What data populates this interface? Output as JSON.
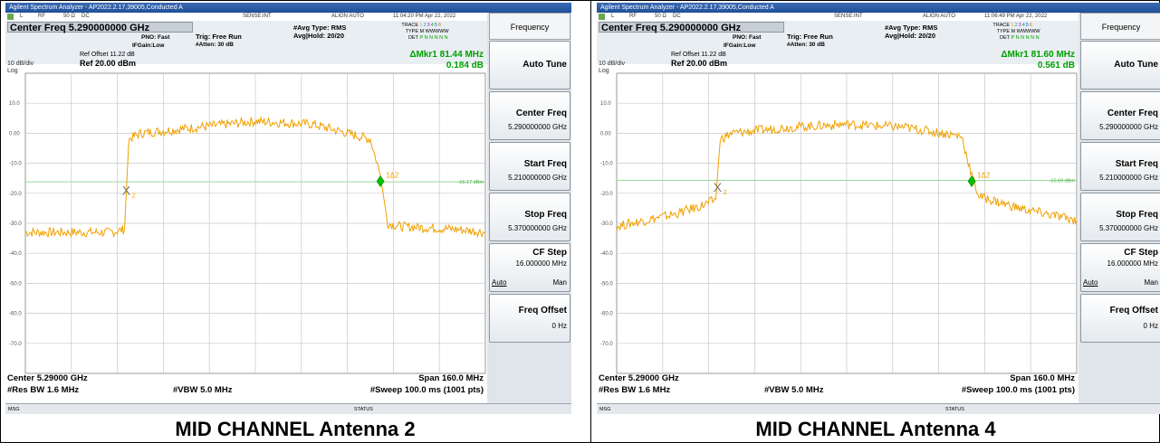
{
  "colors": {
    "trace": "#f0a000",
    "marker": "#00c000",
    "threshold": "#9bd89b",
    "grid": "#c8c8c8",
    "delta_text": "#00a000"
  },
  "panels": [
    {
      "title": "Agilent Spectrum Analyzer - AP2022.2.17,39005,Conducted A",
      "status": {
        "l": "L",
        "rf": "RF",
        "ohm": "50 Ω",
        "dc": "DC",
        "sense": "SENSE:INT",
        "align": "ALIGN AUTO",
        "time": "11:04:20 PM Apr 22, 2022"
      },
      "center_freq": "Center Freq 5.290000000 GHz",
      "pno": "PNO: Fast",
      "ifgain": "IFGain:Low",
      "trig": "Trig: Free Run",
      "atten": "#Atten: 30 dB",
      "avg_type": "#Avg Type: RMS",
      "avg_hold": "Avg|Hold: 20/20",
      "trace_label": "TRACE",
      "trace_nums": [
        "1",
        "2",
        "3",
        "4",
        "5",
        "6"
      ],
      "type_label": "TYPE",
      "type_val": "M WWWWW",
      "det_label": "DET",
      "det_val": "P N N N N N",
      "ref_offset": "Ref Offset 11.22 dB",
      "ref_level": "Ref 20.00 dBm",
      "db_div": "10 dB/div",
      "log": "Log",
      "mkr_freq": "ΔMkr1 81.44 MHz",
      "mkr_db": "0.184 dB",
      "threshold_label": "-16.17 dBm",
      "marker_label": "1Δ2",
      "ref_marker_label": "2",
      "center_label": "Center 5.29000 GHz",
      "span_label": "Span 160.0 MHz",
      "rbw": "#Res BW 1.6 MHz",
      "vbw": "#VBW 5.0 MHz",
      "sweep": "#Sweep  100.0 ms (1001 pts)",
      "msg": "MSG",
      "status_word": "STATUS",
      "caption": "MID CHANNEL Antenna 2"
    },
    {
      "title": "Agilent Spectrum Analyzer - AP2022.2.17,39005,Conducted A",
      "status": {
        "l": "L",
        "rf": "RF",
        "ohm": "50 Ω",
        "dc": "DC",
        "sense": "SENSE:INT",
        "align": "ALIGN AUTO",
        "time": "11:06:49 PM Apr 22, 2022"
      },
      "center_freq": "Center Freq 5.290000000 GHz",
      "pno": "PNO: Fast",
      "ifgain": "IFGain:Low",
      "trig": "Trig: Free Run",
      "atten": "#Atten: 30 dB",
      "avg_type": "#Avg Type: RMS",
      "avg_hold": "Avg|Hold: 20/20",
      "trace_label": "TRACE",
      "trace_nums": [
        "1",
        "2",
        "3",
        "4",
        "5",
        "6"
      ],
      "type_label": "TYPE",
      "type_val": "M WWWWW",
      "det_label": "DET",
      "det_val": "P N N N N N",
      "ref_offset": "Ref Offset 11.22 dB",
      "ref_level": "Ref 20.00 dBm",
      "db_div": "10 dB/div",
      "log": "Log",
      "mkr_freq": "ΔMkr1 81.60 MHz",
      "mkr_db": "0.561 dB",
      "threshold_label": "-15.69 dBm",
      "marker_label": "1Δ2",
      "ref_marker_label": "2",
      "center_label": "Center 5.29000 GHz",
      "span_label": "Span 160.0 MHz",
      "rbw": "#Res BW 1.6 MHz",
      "vbw": "#VBW 5.0 MHz",
      "sweep": "#Sweep  100.0 ms (1001 pts)",
      "msg": "MSG",
      "status_word": "STATUS",
      "caption": "MID CHANNEL Antenna 4"
    }
  ],
  "softkeys": {
    "title": "Frequency",
    "auto_tune": "Auto Tune",
    "center_freq": "Center Freq",
    "center_val": "5.290000000 GHz",
    "start_freq": "Start Freq",
    "start_val": "5.210000000 GHz",
    "stop_freq": "Stop Freq",
    "stop_val": "5.370000000 GHz",
    "cf_step": "CF Step",
    "cf_step_val": "16.000000 MHz",
    "auto": "Auto",
    "man": "Man",
    "freq_offset": "Freq Offset",
    "freq_offset_val": "0 Hz"
  },
  "chart_data": [
    {
      "type": "line",
      "xlabel": "",
      "ylabel": "",
      "xlim": [
        5.21,
        5.37
      ],
      "ylim": [
        -80,
        20
      ],
      "y_ticks": [
        "10.0",
        "0.00",
        "-10.0",
        "-20.0",
        "-30.0",
        "-40.0",
        "-50.0",
        "-60.0",
        "-70.0"
      ],
      "grid": true,
      "threshold_dbm": -16.17,
      "series": [
        {
          "x": [
            5.21,
            5.23,
            5.24,
            5.2445,
            5.246,
            5.25,
            5.27,
            5.29,
            5.31,
            5.33,
            5.3335,
            5.336,
            5.34,
            5.36,
            5.37
          ],
          "y": [
            -33,
            -33,
            -33,
            -32,
            -2,
            0,
            2,
            4,
            3,
            -2,
            -14,
            -30,
            -31,
            -32,
            -33
          ]
        }
      ],
      "markers": [
        {
          "label": "2",
          "x": 5.2455,
          "y": -19
        },
        {
          "label": "1Δ2",
          "x": 5.3335,
          "y": -16
        }
      ]
    },
    {
      "type": "line",
      "xlabel": "",
      "ylabel": "",
      "xlim": [
        5.21,
        5.37
      ],
      "ylim": [
        -80,
        20
      ],
      "y_ticks": [
        "10.0",
        "0.00",
        "-10.0",
        "-20.0",
        "-30.0",
        "-40.0",
        "-50.0",
        "-60.0",
        "-70.0"
      ],
      "grid": true,
      "threshold_dbm": -15.69,
      "series": [
        {
          "x": [
            5.21,
            5.22,
            5.23,
            5.24,
            5.2445,
            5.246,
            5.25,
            5.27,
            5.29,
            5.31,
            5.33,
            5.3335,
            5.336,
            5.35,
            5.37
          ],
          "y": [
            -31,
            -29,
            -27,
            -24,
            -22,
            -2,
            0,
            2,
            3,
            2,
            -1,
            -14,
            -21,
            -25,
            -29
          ]
        }
      ],
      "markers": [
        {
          "label": "2",
          "x": 5.2455,
          "y": -18
        },
        {
          "label": "1Δ2",
          "x": 5.3335,
          "y": -16
        }
      ]
    }
  ]
}
